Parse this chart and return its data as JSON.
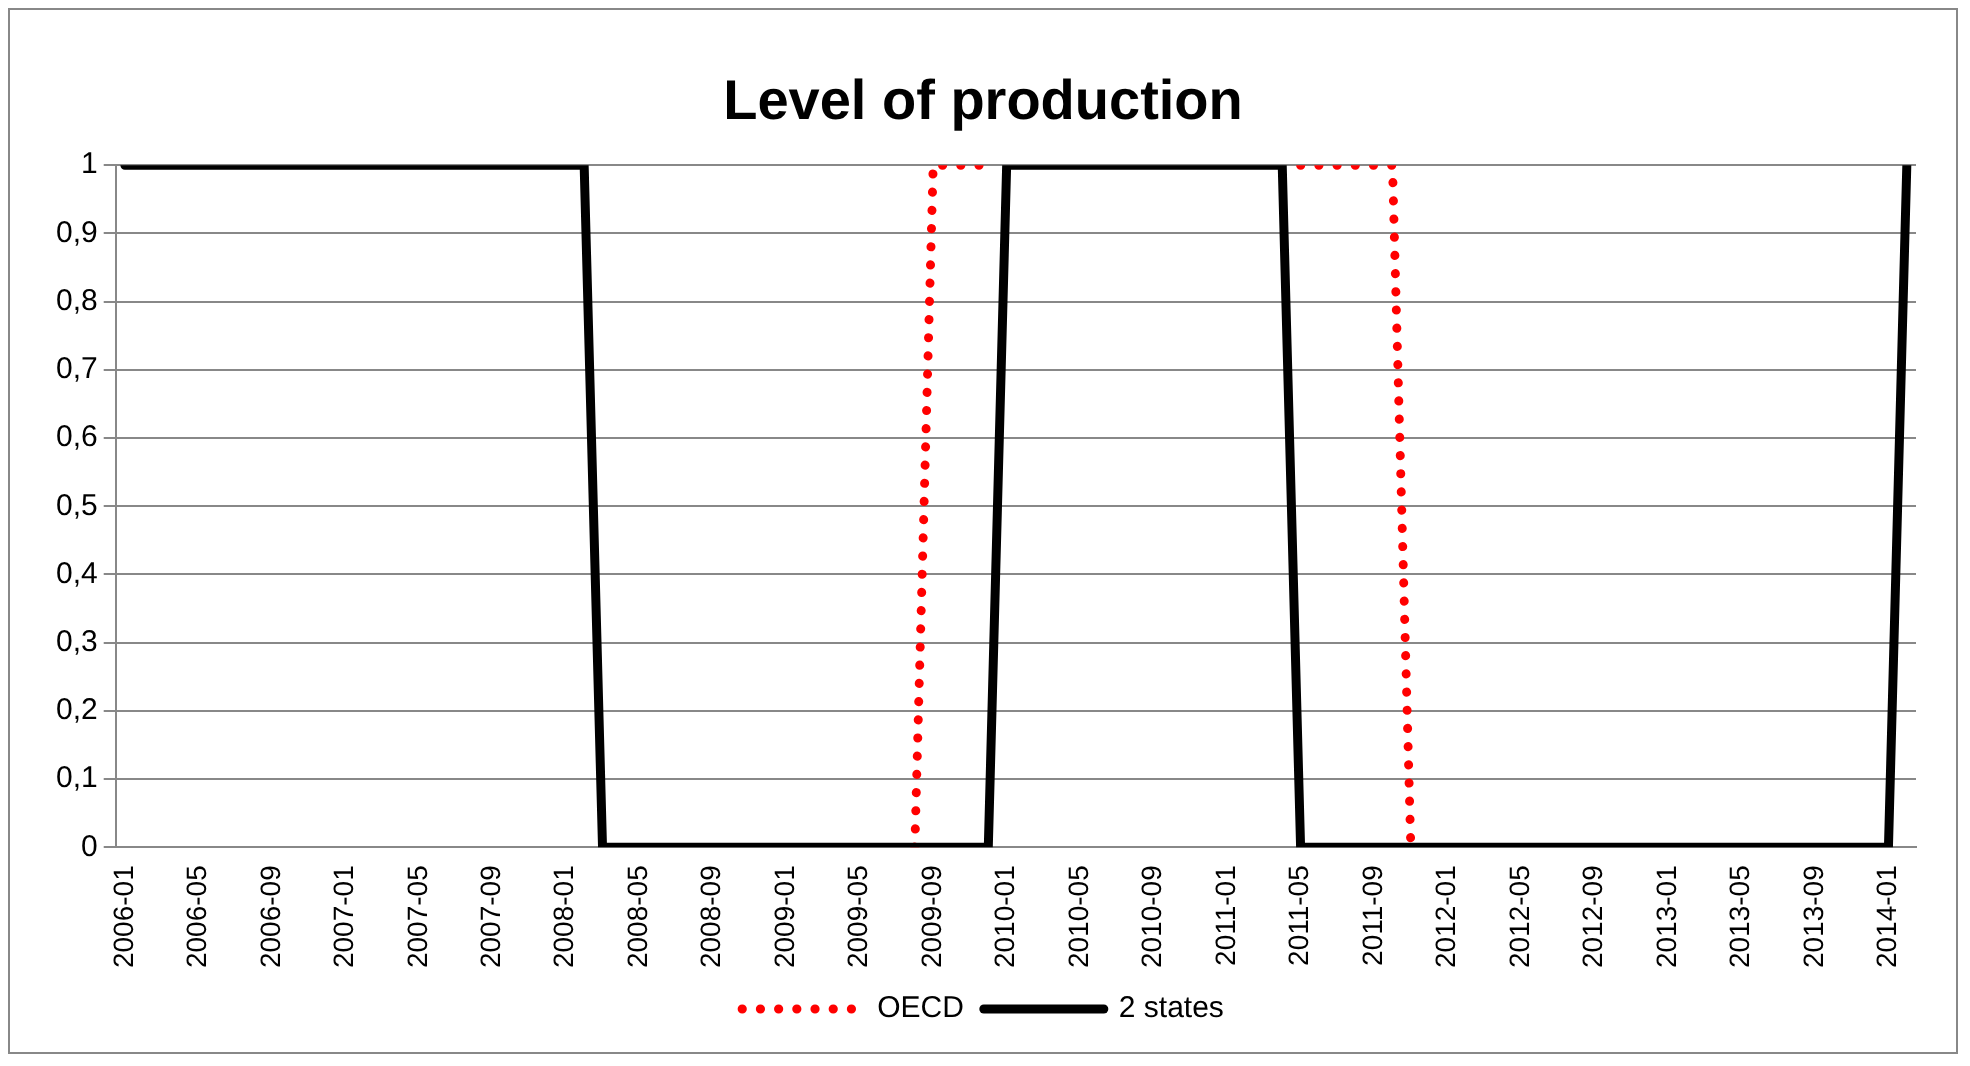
{
  "chart_data": {
    "type": "line",
    "title": "Level of production",
    "categories": [
      "2006-01",
      null,
      null,
      null,
      "2006-05",
      null,
      null,
      null,
      "2006-09",
      null,
      null,
      null,
      "2007-01",
      null,
      null,
      null,
      "2007-05",
      null,
      null,
      null,
      "2007-09",
      null,
      null,
      null,
      "2008-01",
      null,
      null,
      null,
      "2008-05",
      null,
      null,
      null,
      "2008-09",
      null,
      null,
      null,
      "2009-01",
      null,
      null,
      null,
      "2009-05",
      null,
      null,
      null,
      "2009-09",
      null,
      null,
      null,
      "2010-01",
      null,
      null,
      null,
      "2010-05",
      null,
      null,
      null,
      "2010-09",
      null,
      null,
      null,
      "2011-01",
      null,
      null,
      null,
      "2011-05",
      null,
      null,
      null,
      "2011-09",
      null,
      null,
      null,
      "2012-01",
      null,
      null,
      null,
      "2012-05",
      null,
      null,
      null,
      "2012-09",
      null,
      null,
      null,
      "2013-01",
      null,
      null,
      null,
      "2013-05",
      null,
      null,
      null,
      "2013-09",
      null,
      null,
      null,
      "2014-01",
      null
    ],
    "series": [
      {
        "name": "OECD",
        "color": "#ff0000",
        "line_style": "dotted",
        "values": [
          null,
          null,
          null,
          null,
          null,
          null,
          null,
          null,
          null,
          null,
          null,
          null,
          null,
          null,
          null,
          null,
          null,
          null,
          null,
          null,
          null,
          null,
          null,
          null,
          null,
          null,
          null,
          null,
          null,
          null,
          null,
          null,
          null,
          null,
          null,
          null,
          null,
          null,
          null,
          null,
          null,
          null,
          null,
          0,
          1,
          1,
          1,
          1,
          null,
          null,
          null,
          null,
          null,
          null,
          null,
          null,
          null,
          null,
          null,
          null,
          null,
          null,
          null,
          null,
          1,
          1,
          1,
          1,
          1,
          1,
          0,
          null,
          null,
          null,
          null,
          null,
          null,
          null,
          null,
          null,
          null,
          null,
          null,
          null,
          null,
          null,
          null,
          null,
          null,
          null,
          null,
          null,
          null,
          null,
          null,
          null,
          null,
          null
        ]
      },
      {
        "name": "2 states",
        "color": "#000000",
        "line_style": "solid",
        "values": [
          1,
          1,
          1,
          1,
          1,
          1,
          1,
          1,
          1,
          1,
          1,
          1,
          1,
          1,
          1,
          1,
          1,
          1,
          1,
          1,
          1,
          1,
          1,
          1,
          1,
          1,
          0,
          0,
          0,
          0,
          0,
          0,
          0,
          0,
          0,
          0,
          0,
          0,
          0,
          0,
          0,
          0,
          0,
          0,
          0,
          0,
          0,
          0,
          1,
          1,
          1,
          1,
          1,
          1,
          1,
          1,
          1,
          1,
          1,
          1,
          1,
          1,
          1,
          1,
          0,
          0,
          0,
          0,
          0,
          0,
          0,
          0,
          0,
          0,
          0,
          0,
          0,
          0,
          0,
          0,
          0,
          0,
          0,
          0,
          0,
          0,
          0,
          0,
          0,
          0,
          0,
          0,
          0,
          0,
          0,
          0,
          0,
          1
        ]
      }
    ],
    "ylim": [
      0,
      1
    ],
    "yticks": [
      0,
      {
        "value": 0.1,
        "label": "0,1"
      },
      {
        "value": 0.2,
        "label": "0,2"
      },
      {
        "value": 0.3,
        "label": "0,3"
      },
      {
        "value": 0.4,
        "label": "0,4"
      },
      {
        "value": 0.5,
        "label": "0,5"
      },
      {
        "value": 0.6,
        "label": "0,6"
      },
      {
        "value": 0.7,
        "label": "0,7"
      },
      {
        "value": 0.8,
        "label": "0,8"
      },
      {
        "value": 0.9,
        "label": "0,9"
      },
      1
    ],
    "grid": "y",
    "legend": "bottom",
    "marker": "none"
  }
}
